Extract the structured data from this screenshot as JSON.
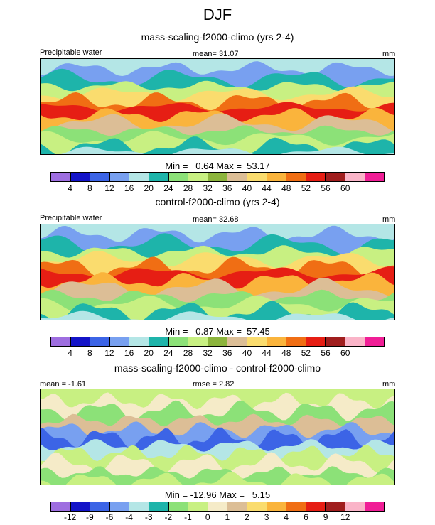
{
  "title": "DJF",
  "panels": [
    {
      "subtitle": "mass-scaling-f2000-climo (yrs 2-4)",
      "left_label": "Precipitable water",
      "center_label": "mean=  31.07",
      "right_label": "mm",
      "stats": "Min =   0.64 Max =  53.17",
      "kind": "field"
    },
    {
      "subtitle": "control-f2000-climo (yrs 2-4)",
      "left_label": "Precipitable water",
      "center_label": "mean=  32.68",
      "right_label": "mm",
      "stats": "Min =   0.87 Max =  57.45",
      "kind": "field"
    },
    {
      "subtitle": "mass-scaling-f2000-climo - control-f2000-climo",
      "left_label": "mean =  -1.61",
      "center_label": "rmse =   2.82",
      "right_label": "mm",
      "stats": "Min = -12.96 Max =   5.15",
      "kind": "diff"
    }
  ],
  "colorbars": {
    "field": {
      "colors": [
        "#9e6ee0",
        "#1414c8",
        "#3c64e6",
        "#78a0f0",
        "#b4e6e6",
        "#1eb4aa",
        "#8ce178",
        "#c8f082",
        "#8cb43c",
        "#dcbe96",
        "#fadc6e",
        "#fab43c",
        "#f06e14",
        "#e61e14",
        "#a01e1e",
        "#fab4c8",
        "#f01e96"
      ],
      "labels": [
        "4",
        "8",
        "12",
        "16",
        "20",
        "24",
        "28",
        "32",
        "36",
        "40",
        "44",
        "48",
        "52",
        "56",
        "60"
      ]
    },
    "diff": {
      "colors": [
        "#9e6ee0",
        "#1414c8",
        "#3c64e6",
        "#78a0f0",
        "#b4e6e6",
        "#1eb4aa",
        "#8ce178",
        "#c8f082",
        "#f5ebc8",
        "#dcbe96",
        "#fadc6e",
        "#fab43c",
        "#f06e14",
        "#e61e14",
        "#a01e1e",
        "#fab4c8",
        "#f01e96"
      ],
      "labels": [
        "-12",
        "-9",
        "-6",
        "-4",
        "-3",
        "-2",
        "-1",
        "0",
        "1",
        "2",
        "3",
        "4",
        "6",
        "9",
        "12"
      ]
    }
  },
  "chart_data": [
    {
      "type": "heatmap",
      "title": "mass-scaling-f2000-climo (yrs 2-4)",
      "variable": "Precipitable water",
      "units": "mm",
      "mean": 31.07,
      "min": 0.64,
      "max": 53.17,
      "contour_levels": [
        4,
        8,
        12,
        16,
        20,
        24,
        28,
        32,
        36,
        40,
        44,
        48,
        52,
        56,
        60
      ]
    },
    {
      "type": "heatmap",
      "title": "control-f2000-climo (yrs 2-4)",
      "variable": "Precipitable water",
      "units": "mm",
      "mean": 32.68,
      "min": 0.87,
      "max": 57.45,
      "contour_levels": [
        4,
        8,
        12,
        16,
        20,
        24,
        28,
        32,
        36,
        40,
        44,
        48,
        52,
        56,
        60
      ]
    },
    {
      "type": "heatmap",
      "title": "mass-scaling-f2000-climo - control-f2000-climo",
      "units": "mm",
      "mean": -1.61,
      "rmse": 2.82,
      "min": -12.96,
      "max": 5.15,
      "contour_levels": [
        -12,
        -9,
        -6,
        -4,
        -3,
        -2,
        -1,
        0,
        1,
        2,
        3,
        4,
        6,
        9,
        12
      ]
    }
  ]
}
